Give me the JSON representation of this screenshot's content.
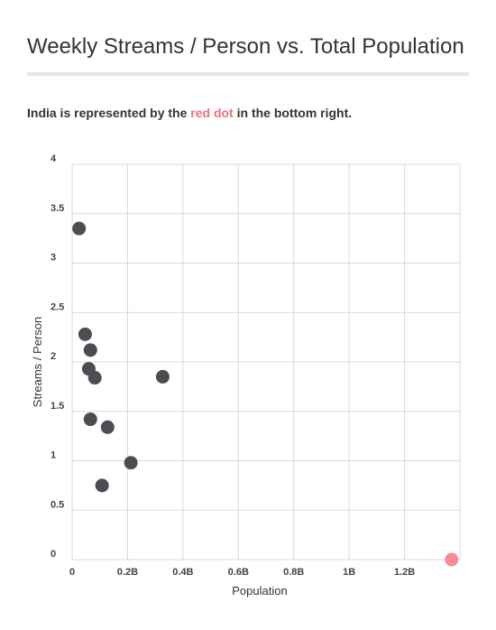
{
  "title": "Weekly Streams / Person vs. Total Population",
  "subtitle": {
    "before": "India is represented by the ",
    "highlight": "red dot",
    "after": " in the bottom right."
  },
  "colors": {
    "point": "#4a4d52",
    "highlight_point": "#f78b93",
    "highlight_text": "#ef6f7c",
    "grid": "#d9d9d9",
    "rule": "#e6e6e6"
  },
  "chart_data": {
    "type": "scatter",
    "xlabel": "Population",
    "ylabel": "Streams / Person",
    "xlim": [
      0,
      1400000000
    ],
    "ylim": [
      0,
      4
    ],
    "x_ticks": [
      0,
      200000000,
      400000000,
      600000000,
      800000000,
      1000000000,
      1200000000
    ],
    "x_tick_labels": [
      "0",
      "0.2B",
      "0.4B",
      "0.6B",
      "0.8B",
      "1B",
      "1.2B"
    ],
    "y_ticks": [
      0,
      0.5,
      1,
      1.5,
      2,
      2.5,
      3,
      3.5,
      4
    ],
    "y_tick_labels": [
      "0",
      "0.5",
      "1",
      "1.5",
      "2",
      "2.5",
      "3",
      "3.5",
      "4"
    ],
    "grid": true,
    "points": [
      {
        "x": 25000000,
        "y": 3.35
      },
      {
        "x": 47000000,
        "y": 2.28
      },
      {
        "x": 66000000,
        "y": 2.12
      },
      {
        "x": 60000000,
        "y": 1.93
      },
      {
        "x": 82000000,
        "y": 1.84
      },
      {
        "x": 327000000,
        "y": 1.85
      },
      {
        "x": 66000000,
        "y": 1.42
      },
      {
        "x": 128000000,
        "y": 1.34
      },
      {
        "x": 212000000,
        "y": 0.98
      },
      {
        "x": 108000000,
        "y": 0.75
      },
      {
        "x": 1370000000,
        "y": 0.0,
        "highlight": true
      }
    ]
  }
}
